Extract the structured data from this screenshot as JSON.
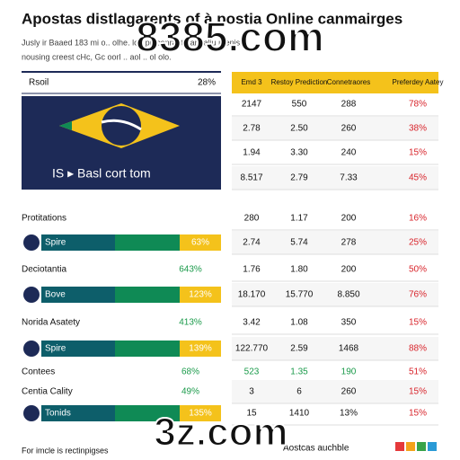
{
  "header": {
    "title": "Apostas distlagarents of à postia Online canmairges",
    "subtitle": [
      "Jusly ir Baaed 183 mi o.. olhe. lo.. prl conrantmant aliu menisis",
      "nousing creest cHc, Gc oorl .. aol .. ol olo."
    ]
  },
  "watermarks": [
    "8385.com",
    "3z.com"
  ],
  "panel": {
    "label": "Rsoil",
    "value": "28%",
    "banner": "IS ▸ Basl cort tom"
  },
  "left_rows": [
    {
      "label": "Protitations",
      "value": ""
    },
    {
      "label": "Spire",
      "value": "63%",
      "bar": true
    },
    {
      "label": "Deciotantia",
      "value": "643%"
    },
    {
      "label": "Bove",
      "value": "123%",
      "bar": true
    },
    {
      "label": "Norida Asatety",
      "value": "413%"
    },
    {
      "label": "Spire",
      "value": "139%",
      "bar": true
    },
    {
      "label": "Contees",
      "value": "68%"
    },
    {
      "label": "Centia Cality",
      "value": "49%"
    },
    {
      "label": "Tonids",
      "value": "135%",
      "bar": true
    }
  ],
  "table": {
    "columns": [
      "Emd 3",
      "Restoy Prediction",
      "Connetraores",
      "Preferdey Aatey"
    ],
    "rows": [
      [
        "2147",
        "550",
        "288",
        "78%"
      ],
      [
        "2.78",
        "2.50",
        "260",
        "38%"
      ],
      [
        "1.94",
        "3.30",
        "240",
        "15%"
      ],
      [
        "8.517",
        "2.79",
        "7.33",
        "45%"
      ],
      [
        "280",
        "1.17",
        "200",
        "16%"
      ],
      [
        "2.74",
        "5.74",
        "278",
        "25%"
      ],
      [
        "1.76",
        "1.80",
        "200",
        "50%"
      ],
      [
        "18.170",
        "15.770",
        "8.850",
        "76%"
      ],
      [
        "3.42",
        "1.08",
        "350",
        "15%"
      ],
      [
        "122.770",
        "2.59",
        "1468",
        "88%"
      ],
      [
        "523",
        "1.35",
        "190",
        "51%"
      ],
      [
        "3",
        "6",
        "260",
        "15%"
      ],
      [
        "15",
        "1410",
        "13%",
        "15%"
      ]
    ]
  },
  "footer": {
    "left": "For imcle is rectinpigses",
    "right": "Aostcas auchble"
  }
}
